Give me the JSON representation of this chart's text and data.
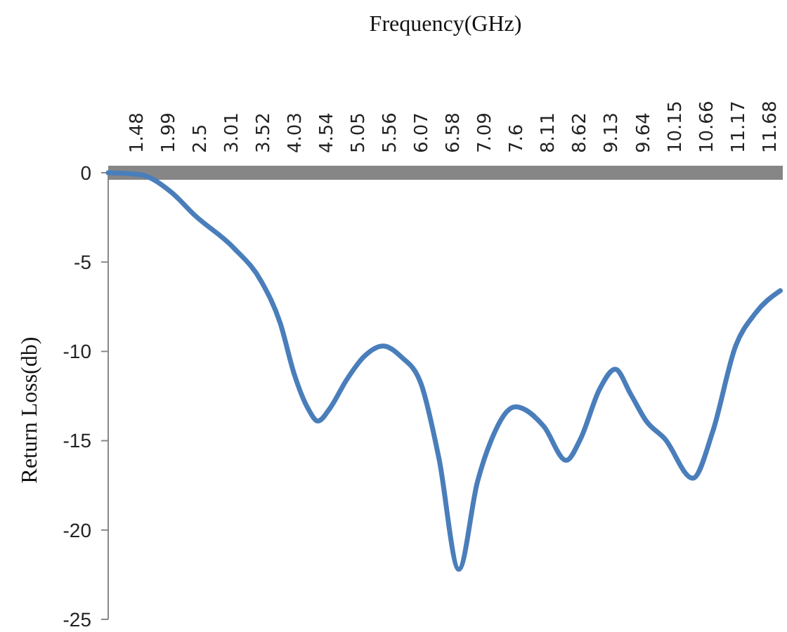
{
  "chart_data": {
    "type": "line",
    "xlabel": "Frequency(GHz)",
    "ylabel": "Return Loss(db)",
    "xlim": [
      1.03,
      11.9
    ],
    "xticks": [
      1.48,
      1.99,
      2.5,
      3.01,
      3.52,
      4.03,
      4.54,
      5.05,
      5.56,
      6.07,
      6.58,
      7.09,
      7.6,
      8.11,
      8.62,
      9.13,
      9.64,
      10.15,
      10.66,
      11.17,
      11.68
    ],
    "ylim": [
      -25,
      0
    ],
    "yticks": [
      0,
      -5,
      -10,
      -15,
      -20,
      -25
    ],
    "grid": false,
    "marker": "none",
    "line_style": "solid",
    "series": [
      {
        "color": "#4a7ebb",
        "x": [
          1.03,
          1.53,
          2.05,
          2.43,
          3.05,
          3.5,
          3.8,
          4.03,
          4.25,
          4.41,
          4.6,
          4.87,
          5.15,
          5.46,
          5.75,
          6.07,
          6.36,
          6.68,
          6.98,
          7.21,
          7.59,
          8.05,
          8.41,
          8.64,
          8.95,
          9.2,
          9.45,
          9.7,
          10.0,
          10.45,
          10.77,
          11.14,
          11.45,
          11.86
        ],
        "values": [
          0,
          -0.1,
          -1.1,
          -2.4,
          -4.2,
          -6.1,
          -8.4,
          -11.3,
          -13.2,
          -13.9,
          -13.2,
          -11.6,
          -10.3,
          -9.7,
          -10.3,
          -11.8,
          -16.0,
          -22.2,
          -17.3,
          -14.9,
          -13.1,
          -14.2,
          -16.1,
          -14.9,
          -12.1,
          -11.0,
          -12.4,
          -13.9,
          -14.9,
          -17.1,
          -14.5,
          -9.7,
          -7.9,
          -6.6
        ]
      }
    ]
  }
}
